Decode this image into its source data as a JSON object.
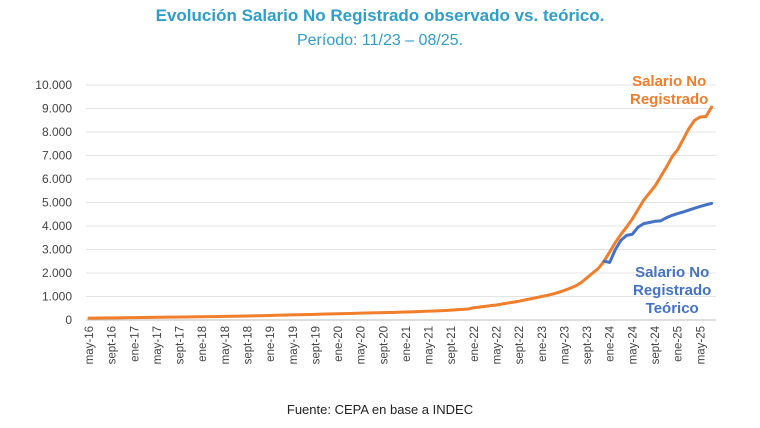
{
  "title": "Evolución Salario No Registrado observado vs. teórico.",
  "subtitle": "Período: 11/23 – 08/25.",
  "source": "Fuente: CEPA en base a INDEC",
  "chart_data": {
    "type": "line",
    "ylim": [
      0,
      10000
    ],
    "y_ticks": [
      0,
      1000,
      2000,
      3000,
      4000,
      5000,
      6000,
      7000,
      8000,
      9000,
      10000
    ],
    "y_tick_labels": [
      "0",
      "1.000",
      "2.000",
      "3.000",
      "4.000",
      "5.000",
      "6.000",
      "7.000",
      "8.000",
      "9.000",
      "10.000"
    ],
    "x_tick_labels": [
      "may-16",
      "sept-16",
      "ene-17",
      "may-17",
      "sept-17",
      "ene-18",
      "may-18",
      "sept-18",
      "ene-19",
      "may-19",
      "sept-19",
      "ene-20",
      "may-20",
      "sept-20",
      "ene-21",
      "may-21",
      "sept-21",
      "ene-22",
      "may-22",
      "sept-22",
      "ene-23",
      "may-23",
      "sept-23",
      "ene-24",
      "may-24",
      "sept-24",
      "ene-25",
      "may-25"
    ],
    "x_tick_step_months": 4,
    "grid": true,
    "series": [
      {
        "name": "Salario No Registrado",
        "label_lines": [
          "Salario No",
          "Registrado"
        ],
        "color": "#F07E2B",
        "start_month_index": 0,
        "values": [
          80,
          82,
          85,
          88,
          90,
          93,
          96,
          100,
          103,
          106,
          109,
          112,
          115,
          118,
          121,
          124,
          127,
          130,
          133,
          137,
          140,
          143,
          146,
          150,
          154,
          158,
          162,
          167,
          172,
          177,
          182,
          188,
          194,
          200,
          206,
          212,
          218,
          224,
          230,
          236,
          242,
          248,
          254,
          260,
          266,
          272,
          278,
          284,
          290,
          296,
          302,
          308,
          314,
          320,
          326,
          333,
          340,
          348,
          356,
          365,
          375,
          385,
          395,
          405,
          420,
          435,
          450,
          470,
          520,
          550,
          580,
          610,
          640,
          680,
          720,
          760,
          800,
          850,
          900,
          950,
          1000,
          1050,
          1110,
          1180,
          1260,
          1350,
          1450,
          1600,
          1800,
          2000,
          2200,
          2500,
          2900,
          3300,
          3650,
          3960,
          4300,
          4700,
          5100,
          5400,
          5700,
          6100,
          6500,
          6940,
          7250,
          7700,
          8150,
          8500,
          8640,
          8660,
          9060
        ]
      },
      {
        "name": "Salario No Registrado Teórico",
        "label_lines": [
          "Salario No",
          "Registrado",
          "Teórico"
        ],
        "color": "#4472C4",
        "start_month_index": 91,
        "values": [
          2500,
          2450,
          3000,
          3400,
          3600,
          3650,
          3950,
          4100,
          4150,
          4200,
          4220,
          4350,
          4450,
          4530,
          4600,
          4680,
          4760,
          4830,
          4900,
          4960
        ]
      }
    ]
  }
}
